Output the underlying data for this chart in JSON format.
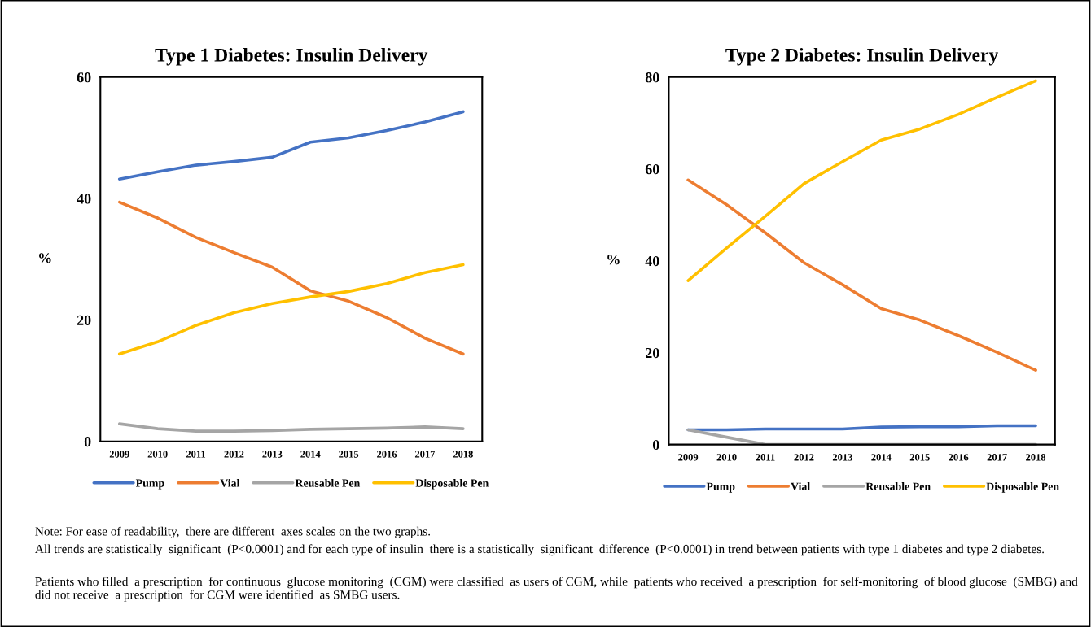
{
  "chart_data": [
    {
      "type": "line",
      "title": "Type 1 Diabetes: Insulin Delivery",
      "ylabel": "%",
      "categories": [
        "2009",
        "2010",
        "2011",
        "2012",
        "2013",
        "2014",
        "2015",
        "2016",
        "2017",
        "2018"
      ],
      "ylim": [
        0,
        60
      ],
      "yticks": [
        0,
        20,
        40,
        60
      ],
      "legend": "bottom",
      "grid": false,
      "marker": "none",
      "line_style": "solid",
      "series": [
        {
          "name": "Pump",
          "color": "#4472c4",
          "values": [
            43.2,
            44.4,
            45.5,
            46.1,
            46.8,
            49.3,
            50.0,
            51.2,
            52.6,
            54.3
          ]
        },
        {
          "name": "Vial",
          "color": "#ed7d31",
          "values": [
            39.4,
            36.8,
            33.6,
            31.1,
            28.7,
            24.8,
            23.1,
            20.4,
            17.0,
            14.4
          ]
        },
        {
          "name": "Reusable Pen",
          "color": "#a5a5a5",
          "values": [
            2.9,
            2.1,
            1.7,
            1.7,
            1.8,
            2.0,
            2.1,
            2.2,
            2.4,
            2.1
          ]
        },
        {
          "name": "Disposable Pen",
          "color": "#ffc000",
          "values": [
            14.4,
            16.4,
            19.1,
            21.2,
            22.7,
            23.8,
            24.7,
            26.0,
            27.8,
            29.1
          ]
        }
      ],
      "annotations": [
        "Note: For ease of readability,  there are different  axes scales on the two graphs.",
        "All trends are statistically  significant  (P<0.0001) and for each type of insulin  there is a statistically  significant  difference  (P<0.0001) in trend between patients with type 1 diabetes and type 2 diabetes.",
        "Patients who filled  a prescription  for continuous  glucose monitoring  (CGM) were classified  as users of CGM, while  patients who received  a prescription  for self-monitoring  of blood glucose  (SMBG) and did not receive  a prescription  for CGM were identified  as SMBG users."
      ]
    },
    {
      "type": "line",
      "title": "Type 2 Diabetes: Insulin Delivery",
      "ylabel": "%",
      "categories": [
        "2009",
        "2010",
        "2011",
        "2012",
        "2013",
        "2014",
        "2015",
        "2016",
        "2017",
        "2018"
      ],
      "ylim": [
        0,
        80
      ],
      "yticks": [
        0,
        20,
        40,
        60,
        80
      ],
      "legend": "bottom",
      "grid": false,
      "marker": "none",
      "line_style": "solid",
      "series": [
        {
          "name": "Pump",
          "color": "#4472c4",
          "values": [
            3.2,
            3.2,
            3.4,
            3.4,
            3.4,
            3.8,
            3.9,
            3.9,
            4.1,
            4.1
          ]
        },
        {
          "name": "Vial",
          "color": "#ed7d31",
          "values": [
            57.6,
            52.2,
            46.1,
            39.6,
            34.8,
            29.6,
            27.1,
            23.7,
            20.1,
            16.2
          ]
        },
        {
          "name": "Reusable Pen",
          "color": "#a5a5a5",
          "values": [
            3.2,
            1.6,
            0,
            0,
            0,
            0,
            0,
            0,
            0,
            0
          ]
        },
        {
          "name": "Disposable Pen",
          "color": "#ffc000",
          "values": [
            35.7,
            42.8,
            49.7,
            56.8,
            61.6,
            66.3,
            68.7,
            71.9,
            75.6,
            79.2
          ]
        }
      ]
    }
  ]
}
